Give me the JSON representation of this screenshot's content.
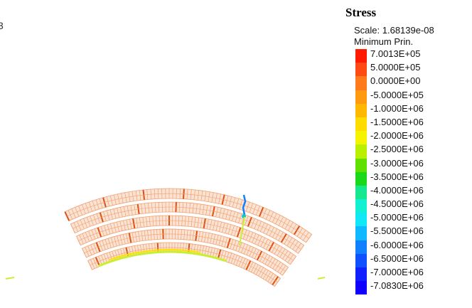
{
  "edge_fragment": "3",
  "legend": {
    "title": "Stress",
    "scale_text": "Scale: 1.68139e-08",
    "type_text": "Minimum Prin.",
    "levels": [
      {
        "label": "7.0013E+05",
        "color": "#ff1a00"
      },
      {
        "label": "5.0000E+05",
        "color": "#ff4a14"
      },
      {
        "label": "0.0000E+00",
        "color": "#ff7a1a"
      },
      {
        "label": "-5.0000E+05",
        "color": "#ff9a10"
      },
      {
        "label": "-1.0000E+06",
        "color": "#ffb800"
      },
      {
        "label": "-1.5000E+06",
        "color": "#ffdc00"
      },
      {
        "label": "-2.0000E+06",
        "color": "#f4f400"
      },
      {
        "label": "-2.5000E+06",
        "color": "#b8f000"
      },
      {
        "label": "-3.0000E+06",
        "color": "#60e000"
      },
      {
        "label": "-3.5000E+06",
        "color": "#1ad81a"
      },
      {
        "label": "-4.0000E+06",
        "color": "#16e890"
      },
      {
        "label": "-4.5000E+06",
        "color": "#12f0d4"
      },
      {
        "label": "-5.0000E+06",
        "color": "#10e8f8"
      },
      {
        "label": "-5.5000E+06",
        "color": "#10b8ff"
      },
      {
        "label": "-6.0000E+06",
        "color": "#1080ff"
      },
      {
        "label": "-6.5000E+06",
        "color": "#1050ff"
      },
      {
        "label": "-7.0000E+06",
        "color": "#1020ff"
      },
      {
        "label": "-7.0830E+06",
        "color": "#1000ff"
      }
    ]
  },
  "colors": {
    "band_base": "#f0a070",
    "band_accent": "#e05010",
    "inner_edge": "#c8f030",
    "inner_edge_hot": "#ffe000",
    "connector": "#1080ff",
    "connector_tip": "#10c8c8"
  }
}
